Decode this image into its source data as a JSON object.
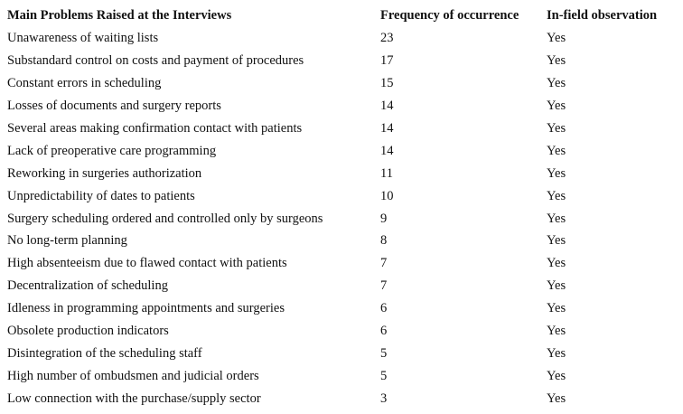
{
  "table": {
    "header": [
      "Main Problems Raised at the Interviews",
      "Frequency of occurrence",
      "In-field observation"
    ],
    "rows": [
      [
        "Unawareness of waiting lists",
        23,
        "Yes"
      ],
      [
        "Substandard control on costs and payment of procedures",
        17,
        "Yes"
      ],
      [
        "Constant errors in scheduling",
        15,
        "Yes"
      ],
      [
        "Losses of documents and surgery reports",
        14,
        "Yes"
      ],
      [
        "Several areas making confirmation contact with patients",
        14,
        "Yes"
      ],
      [
        "Lack of preoperative care programming",
        14,
        "Yes"
      ],
      [
        "Reworking in surgeries authorization",
        11,
        "Yes"
      ],
      [
        "Unpredictability of dates to patients",
        10,
        "Yes"
      ],
      [
        "Surgery scheduling ordered and controlled only by surgeons",
        9,
        "Yes"
      ],
      [
        "No long-term planning",
        8,
        "Yes"
      ],
      [
        "High absenteeism due to flawed contact with patients",
        7,
        "Yes"
      ],
      [
        "Decentralization of scheduling",
        7,
        "Yes"
      ],
      [
        "Idleness in programming appointments and surgeries",
        6,
        "Yes"
      ],
      [
        "Obsolete production indicators",
        6,
        "Yes"
      ],
      [
        "Disintegration of the scheduling staff",
        5,
        "Yes"
      ],
      [
        "High number of ombudsmen and judicial orders",
        5,
        "Yes"
      ],
      [
        "Low connection with the purchase/supply sector",
        3,
        "Yes"
      ]
    ]
  }
}
